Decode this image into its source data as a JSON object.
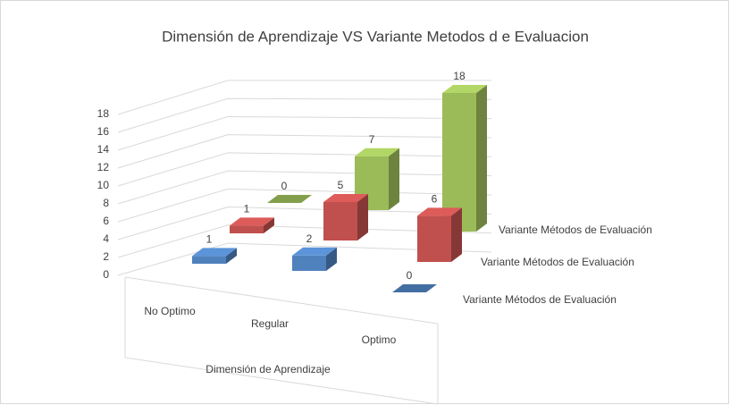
{
  "chart_data": {
    "type": "bar3d",
    "title": "Dimensión de  Aprendizaje  VS Variante  Metodos d e   Evaluacion",
    "x_label": "Dimensión de Aprendizaje",
    "categories": [
      "No Optimo",
      "Regular",
      "Optimo"
    ],
    "series": [
      {
        "name": "Variante Métodos de Evaluación",
        "color": "#4f81bd",
        "values": [
          1,
          2,
          0
        ]
      },
      {
        "name": "Variante Métodos de Evaluación",
        "color": "#c0504d",
        "values": [
          1,
          5,
          6
        ]
      },
      {
        "name": "Variante Métodos de Evaluación",
        "color": "#9bbb59",
        "values": [
          0,
          7,
          18
        ]
      }
    ],
    "ylim": [
      0,
      18
    ],
    "yticks": [
      0,
      2,
      4,
      6,
      8,
      10,
      12,
      14,
      16,
      18
    ],
    "grid": true
  }
}
